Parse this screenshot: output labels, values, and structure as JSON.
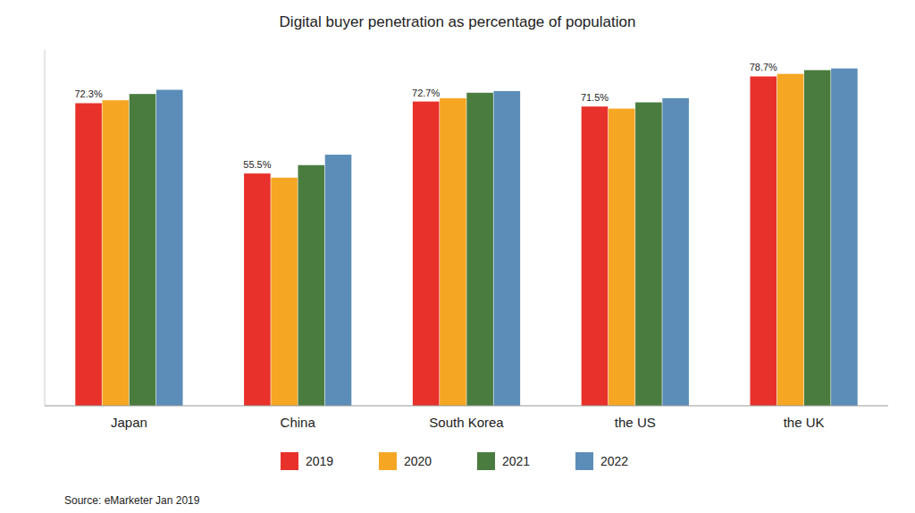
{
  "chart_data": {
    "type": "bar",
    "title": "Digital buyer penetration as percentage of population",
    "categories": [
      "Japan",
      "China",
      "South Korea",
      "the US",
      "the UK"
    ],
    "series": [
      {
        "name": "2019",
        "color": "#e8312a",
        "values": [
          72.3,
          55.5,
          72.7,
          71.5,
          78.7
        ],
        "data_labels": true,
        "value_labels": [
          "72.3%",
          "55.5%",
          "72.7%",
          "71.5%",
          "78.7%"
        ]
      },
      {
        "name": "2020",
        "color": "#f5a623",
        "values": [
          73.0,
          54.5,
          73.5,
          71.0,
          79.3
        ]
      },
      {
        "name": "2021",
        "color": "#4a7c3f",
        "values": [
          74.5,
          57.5,
          74.8,
          72.5,
          80.2
        ]
      },
      {
        "name": "2022",
        "color": "#5b8db8",
        "values": [
          75.5,
          60.0,
          75.2,
          73.5,
          80.6
        ]
      }
    ],
    "ylim": [
      0,
      85
    ],
    "yticks": [],
    "grid": false,
    "tick_labels": "x",
    "legend": "bottom",
    "source": "Source: eMarketer Jan 2019"
  }
}
